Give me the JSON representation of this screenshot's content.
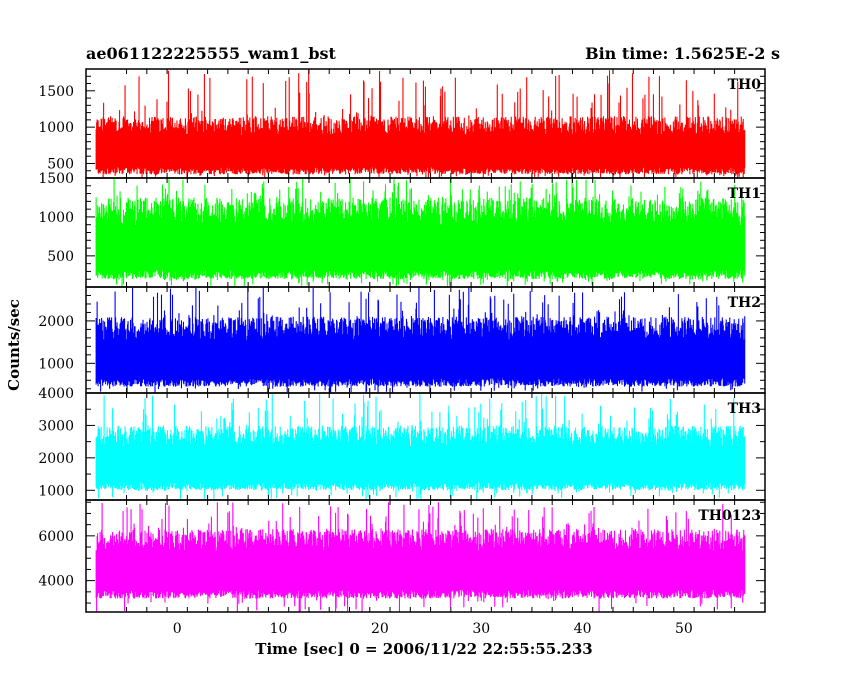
{
  "header": {
    "title": "ae061122225555_wam1_bst",
    "bin_time": "Bin time: 1.5625E-2 s"
  },
  "chart_data": {
    "type": "line",
    "title": "ae061122225555_wam1_bst",
    "subtitle": "Bin time: 1.5625E-2 s",
    "xlabel": "Time [sec] 0 = 2006/11/22 22:55:55.233",
    "ylabel": "Counts/sec",
    "xlim": [
      -9,
      58
    ],
    "x_ticks": [
      0,
      10,
      20,
      30,
      40,
      50
    ],
    "data_x_range": [
      -8,
      56
    ],
    "grid": false,
    "panels": [
      {
        "name": "TH0",
        "color": "#ff0000",
        "ylim": [
          300,
          1800
        ],
        "y_ticks": [
          500,
          1000,
          1500
        ],
        "typical_range": [
          350,
          1150
        ],
        "peak_range": [
          1150,
          1800
        ],
        "mean": 750
      },
      {
        "name": "TH1",
        "color": "#00ff00",
        "ylim": [
          100,
          1500
        ],
        "y_ticks": [
          500,
          1000,
          1500
        ],
        "typical_range": [
          200,
          1250
        ],
        "peak_range": [
          1250,
          1500
        ],
        "mean": 700
      },
      {
        "name": "TH2",
        "color": "#0000ff",
        "ylim": [
          300,
          2800
        ],
        "y_ticks": [
          1000,
          2000
        ],
        "typical_range": [
          450,
          2100
        ],
        "peak_range": [
          2100,
          2800
        ],
        "mean": 1250
      },
      {
        "name": "TH3",
        "color": "#00ffff",
        "ylim": [
          700,
          4000
        ],
        "y_ticks": [
          1000,
          2000,
          3000,
          4000
        ],
        "typical_range": [
          1000,
          3000
        ],
        "peak_range": [
          3000,
          4000
        ],
        "mean": 2000
      },
      {
        "name": "TH0123",
        "color": "#ff00ff",
        "ylim": [
          2600,
          7600
        ],
        "y_ticks": [
          4000,
          6000
        ],
        "typical_range": [
          3200,
          6300
        ],
        "peak_range": [
          6300,
          7500
        ],
        "mean": 4800
      }
    ]
  }
}
